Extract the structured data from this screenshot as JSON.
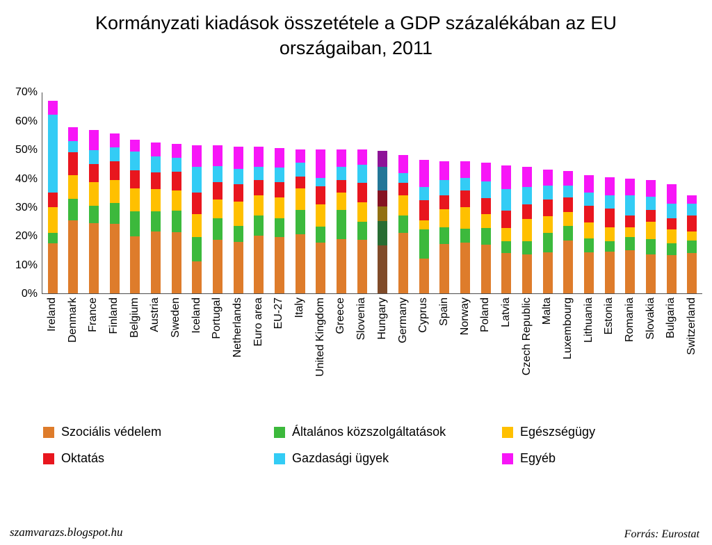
{
  "page": {
    "title": "Kormányzati kiadások összetétele a GDP százalékában az EU országaiban, 2011",
    "footer_left": "szamvarazs.blogspot.hu",
    "footer_right": "Forrás: Eurostat"
  },
  "chart_data": {
    "type": "bar",
    "stacked": true,
    "title": "Kormányzati kiadások összetétele a GDP százalékában az EU országaiban, 2011",
    "xlabel": "",
    "ylabel": "",
    "ylim": [
      0,
      70
    ],
    "ytick_step": 10,
    "ytick_labels": [
      "0%",
      "10%",
      "20%",
      "30%",
      "40%",
      "50%",
      "60%",
      "70%"
    ],
    "grid": false,
    "legend_position": "bottom",
    "highlighted_category": "Hungary",
    "categories": [
      "Ireland",
      "Denmark",
      "France",
      "Finland",
      "Belgium",
      "Austria",
      "Sweden",
      "Iceland",
      "Portugal",
      "Netherlands",
      "Euro area",
      "EU-27",
      "Italy",
      "United Kingdom",
      "Greece",
      "Slovenia",
      "Hungary",
      "Germany",
      "Cyprus",
      "Spain",
      "Norway",
      "Poland",
      "Latvia",
      "Czech Republic",
      "Malta",
      "Luxembourg",
      "Lithuania",
      "Estonia",
      "Romania",
      "Slovakia",
      "Bulgaria",
      "Switzerland"
    ],
    "series": [
      {
        "name": "Szociális védelem",
        "color": "#DE7C2B",
        "values": [
          17.5,
          25.5,
          24.4,
          24.2,
          19.8,
          21.6,
          21.4,
          11.2,
          18.6,
          18.0,
          20.2,
          19.6,
          20.5,
          17.6,
          19.0,
          18.6,
          16.8,
          21.0,
          12.2,
          17.1,
          17.6,
          16.9,
          14.0,
          13.6,
          14.4,
          18.4,
          14.4,
          14.6,
          15.0,
          13.6,
          13.4,
          14.0
        ]
      },
      {
        "name": "Általános közszolgáltatások",
        "color": "#3CB93C",
        "values": [
          3.6,
          7.3,
          6.2,
          7.3,
          8.8,
          6.9,
          7.4,
          8.3,
          7.5,
          5.5,
          6.8,
          6.6,
          8.6,
          5.6,
          10.0,
          6.3,
          8.3,
          6.1,
          10.0,
          5.9,
          4.9,
          5.9,
          4.2,
          4.6,
          6.6,
          5.1,
          4.7,
          3.5,
          4.6,
          5.4,
          4.1,
          4.5
        ]
      },
      {
        "name": "Egészségügy",
        "color": "#FFC000",
        "values": [
          8.9,
          8.4,
          8.2,
          7.9,
          7.9,
          7.8,
          7.0,
          8.0,
          6.5,
          8.5,
          7.2,
          7.3,
          7.4,
          7.8,
          6.1,
          6.9,
          5.2,
          7.0,
          3.3,
          6.3,
          7.6,
          4.9,
          4.5,
          7.7,
          5.8,
          4.7,
          5.7,
          4.9,
          3.4,
          5.9,
          4.7,
          3.0
        ]
      },
      {
        "name": "Oktatás",
        "color": "#E8161E",
        "values": [
          5.0,
          7.8,
          6.1,
          6.5,
          6.3,
          5.8,
          6.6,
          7.5,
          6.2,
          5.9,
          5.1,
          5.3,
          4.2,
          6.2,
          4.4,
          6.6,
          5.4,
          4.3,
          7.0,
          4.7,
          5.6,
          5.5,
          6.0,
          5.0,
          5.8,
          5.1,
          5.8,
          6.4,
          4.1,
          4.1,
          3.9,
          5.6
        ]
      },
      {
        "name": "Gazdasági ügyek",
        "color": "#33CCF5",
        "values": [
          27.0,
          4.0,
          5.0,
          4.8,
          6.4,
          5.6,
          4.8,
          9.0,
          5.5,
          5.3,
          4.8,
          4.9,
          4.7,
          3.0,
          4.5,
          6.3,
          8.4,
          3.5,
          4.5,
          5.4,
          4.5,
          5.7,
          7.5,
          6.1,
          4.8,
          4.3,
          4.4,
          4.6,
          7.0,
          4.6,
          5.0,
          4.0
        ]
      },
      {
        "name": "Egyéb",
        "color": "#F716F7",
        "values": [
          5.0,
          4.7,
          6.9,
          4.8,
          4.1,
          4.8,
          4.8,
          7.5,
          7.2,
          7.8,
          6.9,
          6.8,
          4.6,
          9.8,
          6.0,
          5.3,
          5.4,
          6.1,
          9.5,
          6.6,
          5.8,
          6.6,
          8.3,
          7.0,
          5.6,
          4.9,
          6.0,
          6.5,
          5.9,
          5.9,
          6.9,
          2.9
        ]
      }
    ]
  }
}
